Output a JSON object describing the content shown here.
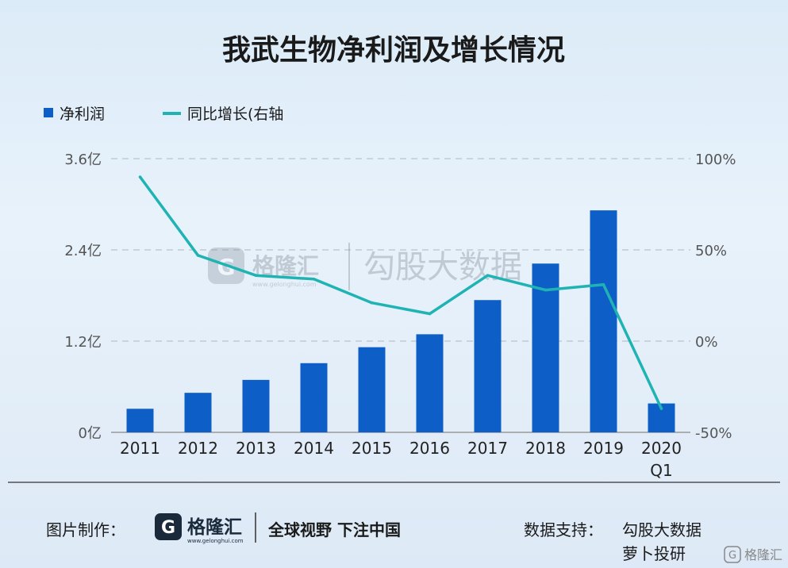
{
  "title": "我武生物净利润及增长情况",
  "chart_data": {
    "type": "bar+line",
    "categories": [
      "2011",
      "2012",
      "2013",
      "2014",
      "2015",
      "2016",
      "2017",
      "2018",
      "2019",
      "2020 Q1"
    ],
    "series": [
      {
        "name": "净利润",
        "type": "bar",
        "axis": "left",
        "values": [
          0.31,
          0.52,
          0.69,
          0.91,
          1.12,
          1.29,
          1.74,
          2.22,
          2.92,
          0.38
        ]
      },
      {
        "name": "同比增长(右轴",
        "type": "line",
        "axis": "right",
        "values": [
          90,
          47,
          36,
          34,
          21,
          15,
          36,
          28,
          31,
          -37
        ]
      }
    ],
    "y_left": {
      "ticks": [
        "0亿",
        "1.2亿",
        "2.4亿",
        "3.6亿"
      ],
      "range": [
        0,
        3.6
      ]
    },
    "y_right": {
      "ticks": [
        "-50%",
        "0%",
        "50%",
        "100%"
      ],
      "range": [
        -50,
        100
      ]
    },
    "colors": {
      "bar": "#0d5fc7",
      "line": "#1fb3b3"
    },
    "legend_position": "top-left",
    "grid": true
  },
  "watermark": {
    "logo_text": "格隆汇",
    "logo_url": "www.gelonghui.com",
    "text": "勾股大数据"
  },
  "footer": {
    "made_by_label": "图片制作：",
    "logo_text": "格隆汇",
    "logo_url": "www.gelonghui.com",
    "slogan": "全球视野 下注中国",
    "source_label": "数据支持：",
    "source_1": "勾股大数据",
    "source_2": "萝卜投研",
    "corner_logo": "格隆汇"
  }
}
